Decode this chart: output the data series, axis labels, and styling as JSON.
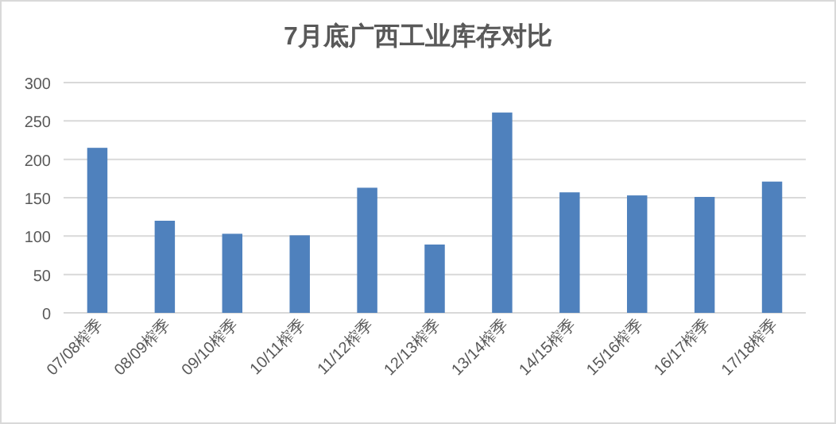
{
  "chart_data": {
    "type": "bar",
    "title": "7月底广西工业库存对比",
    "categories": [
      "07/08榨季",
      "08/09榨季",
      "09/10榨季",
      "10/11榨季",
      "11/12榨季",
      "12/13榨季",
      "13/14榨季",
      "14/15榨季",
      "15/16榨季",
      "16/17榨季",
      "17/18榨季"
    ],
    "values": [
      215,
      120,
      103,
      101,
      163,
      89,
      261,
      157,
      153,
      151,
      171
    ],
    "color": "#4f81bd",
    "ylim": [
      0,
      300
    ],
    "yticks": [
      0,
      50,
      100,
      150,
      200,
      250,
      300
    ],
    "grid": "y"
  }
}
